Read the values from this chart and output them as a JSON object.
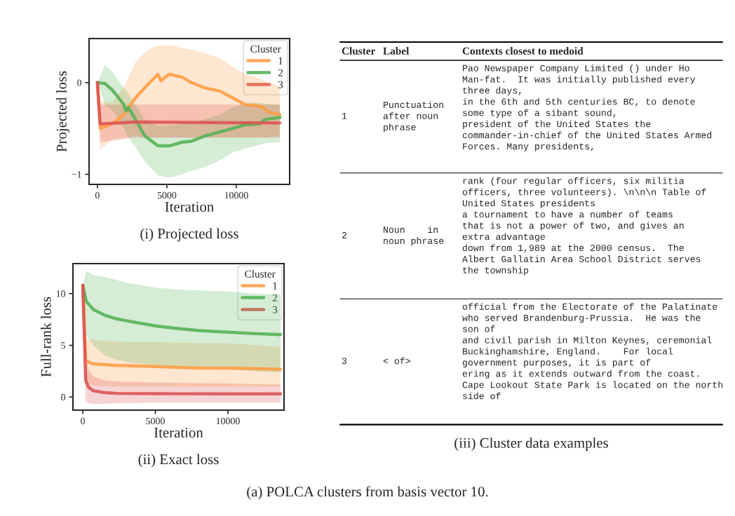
{
  "chart_data": [
    {
      "type": "line",
      "title": "(i) Projected loss",
      "xlabel": "Iteration",
      "ylabel": "Projected loss",
      "legend_title": "Cluster",
      "legend": "top right",
      "grid": false,
      "xlim": [
        -600,
        13840
      ],
      "ylim": [
        -1.11,
        0.48
      ],
      "xticks": [
        0,
        5000,
        10000
      ],
      "yticks": [
        {
          "value": -1,
          "label": "−1"
        },
        0
      ],
      "series": [
        {
          "name": "1",
          "color": "#ff9d45",
          "x": [
            0,
            200,
            1050,
            1900,
            2730,
            3570,
            4360,
            4580,
            5170,
            6090,
            6760,
            7770,
            8770,
            9780,
            10620,
            11800,
            12300,
            13140
          ],
          "values": [
            0,
            -0.5,
            -0.45,
            -0.35,
            -0.17,
            -0.03,
            0.09,
            0.02,
            0.09,
            0.06,
            0,
            -0.06,
            -0.09,
            -0.17,
            -0.24,
            -0.26,
            -0.32,
            -0.35
          ],
          "upper": [
            0,
            -0.2,
            -0.22,
            -0.05,
            0.22,
            0.35,
            0.41,
            0.4,
            0.41,
            0.38,
            0.36,
            0.32,
            0.27,
            0.17,
            0.09,
            0.04,
            0.0,
            -0.04
          ],
          "lower": [
            0,
            -0.73,
            -0.62,
            -0.6,
            -0.58,
            -0.6,
            -0.6,
            -0.6,
            -0.6,
            -0.6,
            -0.6,
            -0.6,
            -0.6,
            -0.6,
            -0.6,
            -0.6,
            -0.6,
            -0.58
          ]
        },
        {
          "name": "2",
          "color": "#57b356",
          "x": [
            0,
            550,
            1060,
            1390,
            1900,
            2060,
            2230,
            2730,
            3400,
            4360,
            5170,
            6090,
            6760,
            7770,
            8770,
            9780,
            10620,
            11630,
            12130,
            13140
          ],
          "values": [
            0,
            -0.01,
            -0.08,
            -0.14,
            -0.24,
            -0.31,
            -0.27,
            -0.4,
            -0.58,
            -0.69,
            -0.69,
            -0.65,
            -0.64,
            -0.58,
            -0.54,
            -0.5,
            -0.46,
            -0.45,
            -0.4,
            -0.38
          ],
          "upper": [
            0,
            0.19,
            0.12,
            0.05,
            -0.06,
            -0.09,
            -0.12,
            -0.24,
            -0.4,
            -0.47,
            -0.47,
            -0.45,
            -0.43,
            -0.4,
            -0.35,
            -0.27,
            -0.22,
            -0.22,
            -0.23,
            -0.24
          ],
          "lower": [
            0,
            -0.24,
            -0.3,
            -0.36,
            -0.5,
            -0.55,
            -0.6,
            -0.7,
            -0.86,
            -1.01,
            -1.04,
            -1.0,
            -0.96,
            -0.92,
            -0.85,
            -0.76,
            -0.72,
            -0.68,
            -0.66,
            -0.65
          ]
        },
        {
          "name": "3",
          "color": "#dc5454",
          "x": [
            0,
            200,
            2730,
            13140
          ],
          "values": [
            0,
            -0.45,
            -0.43,
            -0.44
          ],
          "upper": [
            0,
            -0.24,
            -0.24,
            -0.24
          ],
          "lower": [
            0,
            -0.65,
            -0.6,
            -0.6
          ]
        }
      ]
    },
    {
      "type": "line",
      "title": "(ii) Exact loss",
      "xlabel": "Iteration",
      "ylabel": "Full-rank loss",
      "legend_title": "Cluster",
      "legend": "top right",
      "grid": false,
      "xlim": [
        -680,
        13870
      ],
      "ylim": [
        -1.27,
        12.9
      ],
      "xticks": [
        0,
        5000,
        10000
      ],
      "yticks": [
        0,
        5,
        10
      ],
      "series": [
        {
          "name": "1",
          "color": "#ff9d45",
          "x": [
            0,
            200,
            730,
            2340,
            5000,
            7980,
            10000,
            13630
          ],
          "values": [
            10.8,
            3.5,
            3.2,
            3.05,
            2.95,
            2.8,
            2.8,
            2.68
          ],
          "upper": [
            10.8,
            5.7,
            5.5,
            5.35,
            5.3,
            5.2,
            5.2,
            4.85
          ],
          "lower": [
            10.8,
            1.3,
            1.1,
            1.0,
            1.0,
            1.0,
            1.0,
            1.0
          ]
        },
        {
          "name": "2",
          "color": "#57b356",
          "x": [
            0,
            240,
            730,
            1530,
            2340,
            3150,
            5000,
            6370,
            7980,
            10000,
            11850,
            13630
          ],
          "values": [
            10.8,
            9.25,
            8.46,
            7.9,
            7.56,
            7.33,
            6.88,
            6.65,
            6.43,
            6.27,
            6.13,
            6.04
          ],
          "upper": [
            10.8,
            12.2,
            11.8,
            11.6,
            11.3,
            11.0,
            10.6,
            10.4,
            10.3,
            10.2,
            10.0,
            9.9
          ],
          "lower": [
            10.8,
            5.97,
            5.0,
            4.0,
            3.6,
            3.37,
            3.03,
            2.9,
            2.8,
            2.7,
            2.5,
            2.35
          ]
        },
        {
          "name": "3",
          "color": "#dc5454",
          "x": [
            0,
            200,
            400,
            730,
            1530,
            2340,
            5000,
            10000,
            13630
          ],
          "values": [
            10.8,
            1.6,
            0.95,
            0.6,
            0.42,
            0.35,
            0.32,
            0.3,
            0.3
          ],
          "upper": [
            10.8,
            4.0,
            2.6,
            2.0,
            1.6,
            1.5,
            1.4,
            1.3,
            1.2
          ],
          "lower": [
            10.8,
            -0.4,
            -0.6,
            -0.7,
            -0.65,
            -0.6,
            -0.55,
            -0.55,
            -0.55
          ]
        }
      ]
    },
    {
      "type": "other",
      "title": "(iii) Cluster data examples",
      "annotations": [
        "Cluster",
        "Label",
        "Contexts closest to medoid",
        "1",
        "Punctuation\nafter noun\nphrase",
        "Pao Newspaper Company Limited () under Ho\nMan-fat.  It was initially published every\nthree days,\nin the 6th and 5th centuries BC, to denote\nsome type of a sibant sound,\npresident of the United States the\ncommander-in-chief of the United States Armed\nForces. Many presidents,",
        "2",
        "Noun    in\nnoun phrase",
        "rank (four regular officers, six militia\nofficers, three volunteers). \\n\\n\\n Table of\nUnited States presidents\na tournament to have a number of teams\nthat is not a power of two, and gives an\nextra advantage\ndown from 1,989 at the 2000 census.  The\nAlbert Gallatin Area School District serves\nthe township",
        "3",
        "< of>",
        "official from the Electorate of the Palatinate\nwho served Brandenburg-Prussia.  He was the\nson of\nand civil parish in Milton Keynes, ceremonial\nBuckinghamshire, England.    For local\ngovernment purposes, it is part of\nering as it extends outward from the coast.\nCape Lookout State Park is located on the north\nside of",
        "(a) POLCA clusters from basis vector 10."
      ]
    }
  ]
}
